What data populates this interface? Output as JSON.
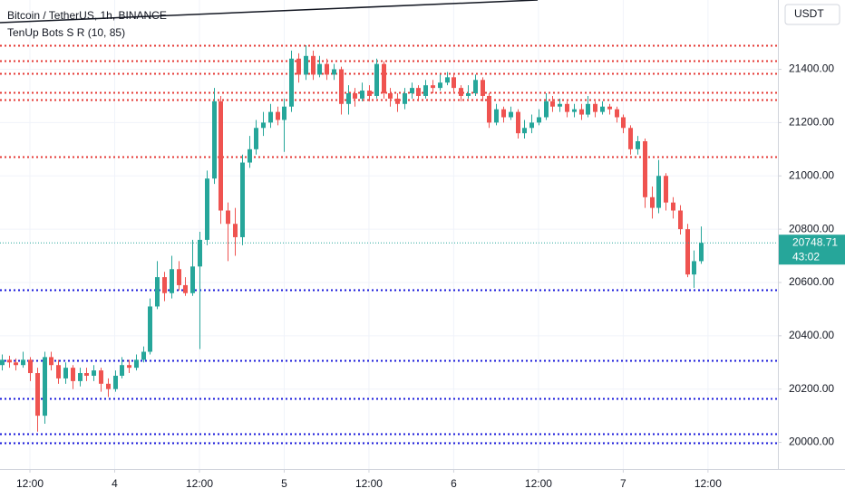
{
  "chart_data": {
    "type": "candlestick",
    "title": "Bitcoin / TetherUS, 1h, BINANCE",
    "indicator": "TenUp Bots S R (10, 85)",
    "currency": "USDT",
    "countdown": "43:02",
    "up_color": "#26a69a",
    "down_color": "#ef5350",
    "xlim": [
      7.76,
      117.9
    ],
    "xticks": [
      {
        "value": 12,
        "label": "12:00"
      },
      {
        "value": 24,
        "label": "4"
      },
      {
        "value": 36,
        "label": "12:00"
      },
      {
        "value": 48,
        "label": "5"
      },
      {
        "value": 60,
        "label": "12:00"
      },
      {
        "value": 72,
        "label": "6"
      },
      {
        "value": 84,
        "label": "12:00"
      },
      {
        "value": 96,
        "label": "7"
      },
      {
        "value": 108,
        "label": "12:00"
      }
    ],
    "ylim": [
      19900,
      21660
    ],
    "yticks": [
      {
        "value": 20000,
        "label": "20000.00"
      },
      {
        "value": 20200,
        "label": "20200.00"
      },
      {
        "value": 20400,
        "label": "20400.00"
      },
      {
        "value": 20600,
        "label": "20600.00"
      },
      {
        "value": 20800,
        "label": "20800.00"
      },
      {
        "value": 21000,
        "label": "21000.00"
      },
      {
        "value": 21200,
        "label": "21200.00"
      },
      {
        "value": 21400,
        "label": "21400.00"
      }
    ],
    "resistance_color": "#e53935",
    "resistance": [
      21489,
      21431,
      21386,
      21315,
      21287,
      21072
    ],
    "support_color": "#1a1adb",
    "support": [
      20574,
      20307,
      20164,
      20034,
      20000
    ],
    "x": [
      8,
      9,
      10,
      11,
      12,
      13,
      14,
      15,
      16,
      17,
      18,
      19,
      20,
      21,
      22,
      23,
      24,
      25,
      26,
      27,
      28,
      29,
      30,
      31,
      32,
      33,
      34,
      35,
      36,
      37,
      38,
      39,
      40,
      41,
      42,
      43,
      44,
      45,
      46,
      47,
      48,
      49,
      50,
      51,
      52,
      53,
      54,
      55,
      56,
      57,
      58,
      59,
      60,
      61,
      62,
      63,
      64,
      65,
      66,
      67,
      68,
      69,
      70,
      71,
      72,
      73,
      74,
      75,
      76,
      77,
      78,
      79,
      80,
      81,
      82,
      83,
      84,
      85,
      86,
      87,
      88,
      89,
      90,
      91,
      92,
      93,
      94,
      95,
      96,
      97,
      98,
      99,
      100,
      101,
      102,
      103,
      104,
      105,
      106,
      107
    ],
    "open": [
      20290,
      20310,
      20300,
      20290,
      20310,
      20260,
      20100,
      20320,
      20290,
      20240,
      20280,
      20230,
      20260,
      20250,
      20270,
      20220,
      20200,
      20250,
      20290,
      20280,
      20310,
      20340,
      20510,
      20620,
      20560,
      20650,
      20590,
      20560,
      20660,
      20760,
      20990,
      21280,
      20870,
      20820,
      20770,
      21050,
      21100,
      21180,
      21200,
      21240,
      21210,
      21260,
      21440,
      21380,
      21450,
      21380,
      21420,
      21380,
      21400,
      21270,
      21310,
      21290,
      21320,
      21300,
      21420,
      21310,
      21290,
      21270,
      21310,
      21330,
      21300,
      21340,
      21330,
      21350,
      21370,
      21330,
      21300,
      21310,
      21360,
      21300,
      21200,
      21250,
      21220,
      21240,
      21160,
      21180,
      21200,
      21220,
      21280,
      21260,
      21270,
      21240,
      21250,
      21230,
      21270,
      21240,
      21260,
      21250,
      21220,
      21180,
      21100,
      21130,
      20920,
      20880,
      21000,
      20900,
      20870,
      20800,
      20630,
      20680
    ],
    "high": [
      20330,
      20325,
      20315,
      20340,
      20320,
      20280,
      20340,
      20340,
      20310,
      20300,
      20290,
      20280,
      20280,
      20290,
      20280,
      20240,
      20270,
      20320,
      20310,
      20330,
      20360,
      20540,
      20680,
      20640,
      20700,
      20680,
      20620,
      20760,
      20790,
      21020,
      21330,
      21300,
      20900,
      20880,
      21080,
      21150,
      21210,
      21240,
      21270,
      21260,
      21290,
      21470,
      21460,
      21490,
      21470,
      21450,
      21440,
      21420,
      21410,
      21340,
      21330,
      21350,
      21340,
      21440,
      21430,
      21330,
      21310,
      21330,
      21350,
      21340,
      21360,
      21360,
      21380,
      21390,
      21380,
      21340,
      21340,
      21380,
      21370,
      21310,
      21270,
      21260,
      21260,
      21250,
      21210,
      21230,
      21250,
      21310,
      21300,
      21290,
      21280,
      21270,
      21270,
      21300,
      21280,
      21280,
      21270,
      21260,
      21230,
      21190,
      21150,
      21140,
      20960,
      21060,
      21010,
      20920,
      20890,
      20820,
      20720,
      20810
    ],
    "low": [
      20270,
      20280,
      20270,
      20280,
      20230,
      20040,
      20070,
      20270,
      20220,
      20220,
      20200,
      20210,
      20230,
      20230,
      20190,
      20170,
      20190,
      20240,
      20260,
      20270,
      20300,
      20330,
      20500,
      20530,
      20540,
      20570,
      20550,
      20550,
      20350,
      20740,
      20970,
      20820,
      20680,
      20700,
      20740,
      21030,
      21080,
      21150,
      21180,
      21190,
      21090,
      21240,
      21350,
      21360,
      21360,
      21370,
      21360,
      21360,
      21230,
      21230,
      21260,
      21280,
      21280,
      21290,
      21290,
      21260,
      21240,
      21250,
      21290,
      21280,
      21290,
      21310,
      21320,
      21340,
      21310,
      21280,
      21290,
      21300,
      21280,
      21180,
      21190,
      21200,
      21210,
      21140,
      21140,
      21160,
      21190,
      21210,
      21240,
      21240,
      21220,
      21220,
      21210,
      21220,
      21220,
      21230,
      21230,
      21200,
      21160,
      21080,
      21080,
      20880,
      20840,
      20860,
      20870,
      20840,
      20780,
      20620,
      20580,
      20670
    ],
    "close": [
      20310,
      20300,
      20290,
      20310,
      20260,
      20100,
      20320,
      20290,
      20240,
      20280,
      20230,
      20260,
      20250,
      20270,
      20220,
      20200,
      20250,
      20290,
      20280,
      20310,
      20340,
      20510,
      20620,
      20560,
      20650,
      20590,
      20560,
      20660,
      20760,
      20990,
      21280,
      20870,
      20820,
      20770,
      21050,
      21100,
      21180,
      21200,
      21240,
      21210,
      21260,
      21440,
      21380,
      21450,
      21380,
      21420,
      21380,
      21400,
      21270,
      21310,
      21290,
      21320,
      21300,
      21420,
      21310,
      21290,
      21270,
      21310,
      21330,
      21300,
      21340,
      21330,
      21350,
      21370,
      21330,
      21300,
      21310,
      21360,
      21300,
      21200,
      21250,
      21220,
      21240,
      21160,
      21180,
      21200,
      21220,
      21280,
      21260,
      21270,
      21240,
      21250,
      21230,
      21270,
      21240,
      21260,
      21250,
      21220,
      21180,
      21100,
      21130,
      20920,
      20880,
      21000,
      20900,
      20870,
      20800,
      20630,
      20680,
      20748.71
    ]
  }
}
